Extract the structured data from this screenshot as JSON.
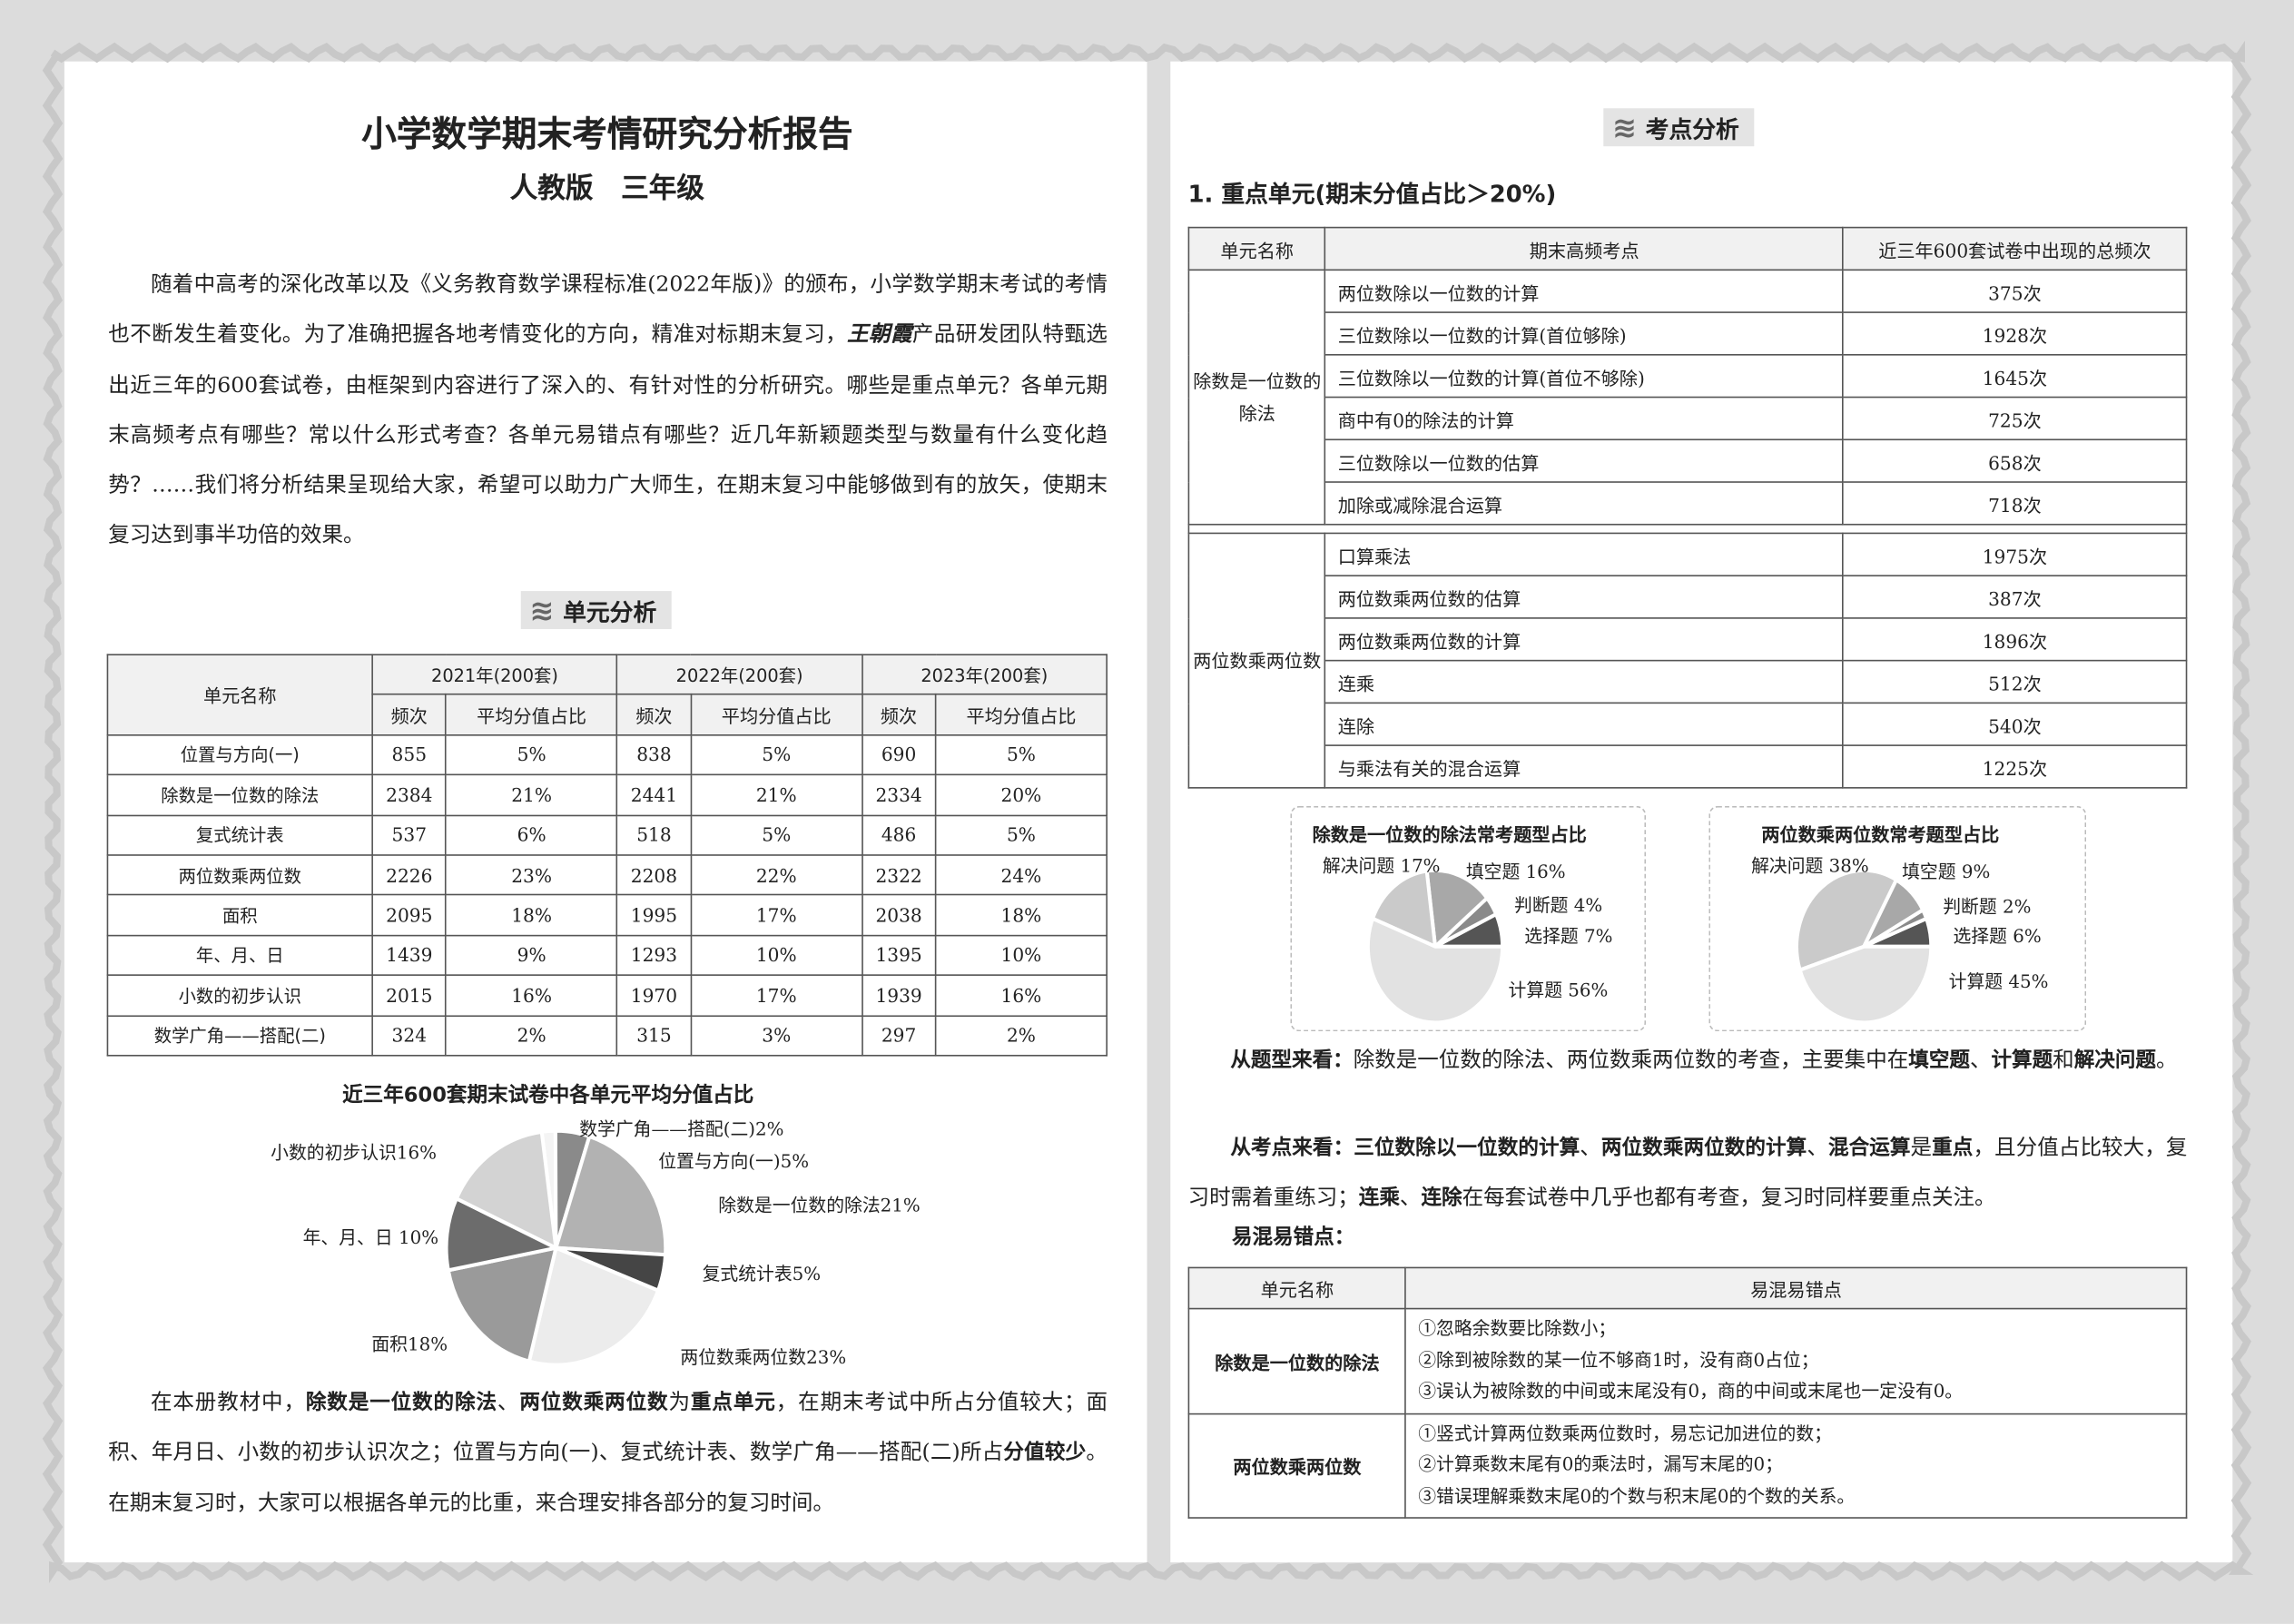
{
  "left": {
    "title": "小学数学期末考情研究分析报告",
    "subtitle": "人教版　三年级",
    "intro": [
      {
        "t": "随着中高考的深化改革以及《义务教育数学课程标准(2022年版)》的颁布，小学数学期末考试的考情也不断发生着变化。为了准确把握各地考情变化的方向，精准对标期末复习，"
      },
      {
        "t": "王朝霞",
        "logo": true
      },
      {
        "t": "产品研发团队特甄选出近三年的600套试卷，由框架到内容进行了深入的、有针对性的分析研究。哪些是重点单元？各单元期末高频考点有哪些？常以什么形式考查？各单元易错点有哪些？近几年新颖题类型与数量有什么变化趋势？……我们将分析结果呈现给大家，希望可以助力广大师生，在期末复习中能够做到有的放矢，使期末复习达到事半功倍的效果。"
      }
    ],
    "section": "单元分析",
    "table": {
      "unit_header": "单元名称",
      "years": [
        "2021年(200套)",
        "2022年(200套)",
        "2023年(200套)"
      ],
      "sub": [
        "频次",
        "平均分值占比"
      ],
      "rows": [
        [
          "位置与方向(一)",
          "855",
          "5%",
          "838",
          "5%",
          "690",
          "5%"
        ],
        [
          "除数是一位数的除法",
          "2384",
          "21%",
          "2441",
          "21%",
          "2334",
          "20%"
        ],
        [
          "复式统计表",
          "537",
          "6%",
          "518",
          "5%",
          "486",
          "5%"
        ],
        [
          "两位数乘两位数",
          "2226",
          "23%",
          "2208",
          "22%",
          "2322",
          "24%"
        ],
        [
          "面积",
          "2095",
          "18%",
          "1995",
          "17%",
          "2038",
          "18%"
        ],
        [
          "年、月、日",
          "1439",
          "9%",
          "1293",
          "10%",
          "1395",
          "10%"
        ],
        [
          "小数的初步认识",
          "2015",
          "16%",
          "1970",
          "17%",
          "1939",
          "16%"
        ],
        [
          "数学广角——搭配(二)",
          "324",
          "2%",
          "315",
          "3%",
          "297",
          "2%"
        ]
      ]
    },
    "summary": [
      {
        "t": "在本册教材中，"
      },
      {
        "t": "除数是一位数的除法",
        "b": true
      },
      {
        "t": "、"
      },
      {
        "t": "两位数乘两位数",
        "b": true
      },
      {
        "t": "为"
      },
      {
        "t": "重点单元",
        "b": true
      },
      {
        "t": "，在期末考试中所占分值较大；面积、年月日、小数的初步认识次之；位置与方向(一)、复式统计表、数学广角——搭配(二)所占"
      },
      {
        "t": "分值较少",
        "b": true
      },
      {
        "t": "。在期末复习时，大家可以根据各单元的比重，来合理安排各部分的复习时间。"
      }
    ]
  },
  "right": {
    "section": "考点分析",
    "heading": "1. 重点单元(期末分值占比＞20%)",
    "table": {
      "headers": [
        "单元名称",
        "期末高频考点",
        "近三年600套试卷中出现的总频次"
      ],
      "groups": [
        {
          "unit": "除数是一位数的除法",
          "rows": [
            [
              "两位数除以一位数的计算",
              "375次"
            ],
            [
              "三位数除以一位数的计算(首位够除)",
              "1928次"
            ],
            [
              "三位数除以一位数的计算(首位不够除)",
              "1645次"
            ],
            [
              "商中有0的除法的计算",
              "725次"
            ],
            [
              "三位数除以一位数的估算",
              "658次"
            ],
            [
              "加除或减除混合运算",
              "718次"
            ]
          ]
        },
        {
          "unit": "两位数乘两位数",
          "rows": [
            [
              "口算乘法",
              "1975次"
            ],
            [
              "两位数乘两位数的估算",
              "387次"
            ],
            [
              "两位数乘两位数的计算",
              "1896次"
            ],
            [
              "连乘",
              "512次"
            ],
            [
              "连除",
              "540次"
            ],
            [
              "与乘法有关的混合运算",
              "1225次"
            ]
          ]
        }
      ]
    },
    "p1": [
      {
        "t": "从题型来看：",
        "b": true
      },
      {
        "t": "除数是一位数的除法、两位数乘两位数的考查，主要集中在"
      },
      {
        "t": "填空题",
        "b": true
      },
      {
        "t": "、"
      },
      {
        "t": "计算题",
        "b": true
      },
      {
        "t": "和"
      },
      {
        "t": "解决问题",
        "b": true
      },
      {
        "t": "。"
      }
    ],
    "p2": [
      {
        "t": "从考点来看：",
        "b": true
      },
      {
        "t": "三位数除以一位数的计算",
        "b": true
      },
      {
        "t": "、"
      },
      {
        "t": "两位数乘两位数的计算",
        "b": true
      },
      {
        "t": "、"
      },
      {
        "t": "混合运算",
        "b": true
      },
      {
        "t": "是"
      },
      {
        "t": "重点",
        "b": true
      },
      {
        "t": "，且分值占比较大，复习时需着重练习；"
      },
      {
        "t": "连乘",
        "b": true
      },
      {
        "t": "、"
      },
      {
        "t": "连除",
        "b": true
      },
      {
        "t": "在每套试卷中几乎也都有考查，复习时同样要重点关注。"
      }
    ],
    "errors_label": "易混易错点：",
    "errors": {
      "headers": [
        "单元名称",
        "易混易错点"
      ],
      "rows": [
        {
          "unit": "除数是一位数的除法",
          "items": [
            "①忽略余数要比除数小；",
            "②除到被除数的某一位不够商1时，没有商0占位；",
            "③误认为被除数的中间或末尾没有0，商的中间或末尾也一定没有0。"
          ]
        },
        {
          "unit": "两位数乘两位数",
          "items": [
            "①竖式计算两位数乘两位数时，易忘记加进位的数；",
            "②计算乘数末尾有0的乘法时，漏写末尾的0；",
            "③错误理解乘数末尾0的个数与积末尾0的个数的关系。"
          ]
        }
      ]
    }
  },
  "chart_data": [
    {
      "type": "pie",
      "title": "近三年600套期末试卷中各单元平均分值占比",
      "categories": [
        "数学广角——搭配(二)",
        "位置与方向(一)",
        "除数是一位数的除法",
        "复式统计表",
        "两位数乘两位数",
        "面积",
        "年、月、日",
        "小数的初步认识"
      ],
      "values": [
        2,
        5,
        21,
        5,
        23,
        18,
        10,
        16
      ],
      "labels": [
        "数学广角——搭配(二)2%",
        "位置与方向(一)5%",
        "除数是一位数的除法21%",
        "复式统计表5%",
        "两位数乘两位数23%",
        "面积18%",
        "年、月、日 10%",
        "小数的初步认识16%"
      ],
      "colors": [
        "#f4f4f4",
        "#8a8a8a",
        "#b2b2b2",
        "#454545",
        "#ececec",
        "#9a9a9a",
        "#6c6c6c",
        "#d3d3d3"
      ]
    },
    {
      "type": "pie",
      "title": "除数是一位数的除法常考题型占比",
      "categories": [
        "选择题",
        "判断题",
        "填空题",
        "解决问题",
        "计算题"
      ],
      "values": [
        7,
        4,
        16,
        17,
        56
      ],
      "labels": [
        "选择题 7%",
        "判断题 4%",
        "填空题 16%",
        "解决问题 17%",
        "计算题 56%"
      ],
      "colors": [
        "#555555",
        "#8a8a8a",
        "#a8a8a8",
        "#cacaca",
        "#e2e2e2"
      ]
    },
    {
      "type": "pie",
      "title": "两位数乘两位数常考题型占比",
      "categories": [
        "选择题",
        "判断题",
        "填空题",
        "解决问题",
        "计算题"
      ],
      "values": [
        6,
        2,
        9,
        38,
        45
      ],
      "labels": [
        "选择题 6%",
        "判断题 2%",
        "填空题 9%",
        "解决问题 38%",
        "计算题 45%"
      ],
      "colors": [
        "#555555",
        "#8a8a8a",
        "#a8a8a8",
        "#cacaca",
        "#e2e2e2"
      ]
    }
  ]
}
